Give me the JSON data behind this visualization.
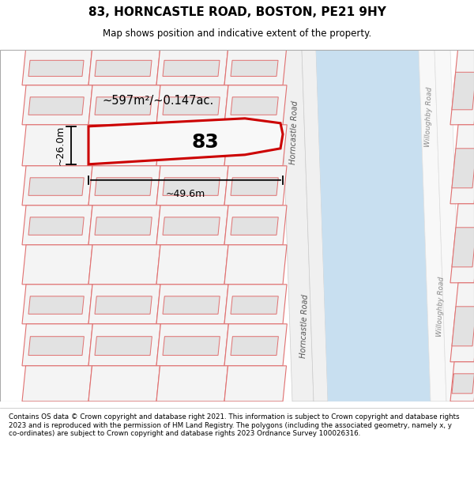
{
  "title": "83, HORNCASTLE ROAD, BOSTON, PE21 9HY",
  "subtitle": "Map shows position and indicative extent of the property.",
  "footer": "Contains OS data © Crown copyright and database right 2021. This information is subject to Crown copyright and database rights 2023 and is reproduced with the permission of HM Land Registry. The polygons (including the associated geometry, namely x, y co-ordinates) are subject to Crown copyright and database rights 2023 Ordnance Survey 100026316.",
  "area_text": "~597m²/~0.147ac.",
  "width_text": "~49.6m",
  "height_text": "~26.0m",
  "plot_number": "83",
  "road_label_1": "Horncastle Road",
  "road_label_2": "Horncastle Road",
  "road_label_r1": "Willoughby Road",
  "road_label_r2": "Willoughby Road",
  "road_color": "#cfe0ed",
  "water_color": "#c8dff0",
  "plot_edge": "#e07070",
  "plot_fill": "#f4f4f4",
  "bldg_fill": "#e2e2e2",
  "bldg_edge": "#e07070",
  "highlight_edge": "#cc0000",
  "highlight_fill": "#f8f8f8",
  "map_bg": "#ffffff",
  "title_fontsize": 11,
  "subtitle_fontsize": 8.5,
  "footer_fontsize": 6.3
}
